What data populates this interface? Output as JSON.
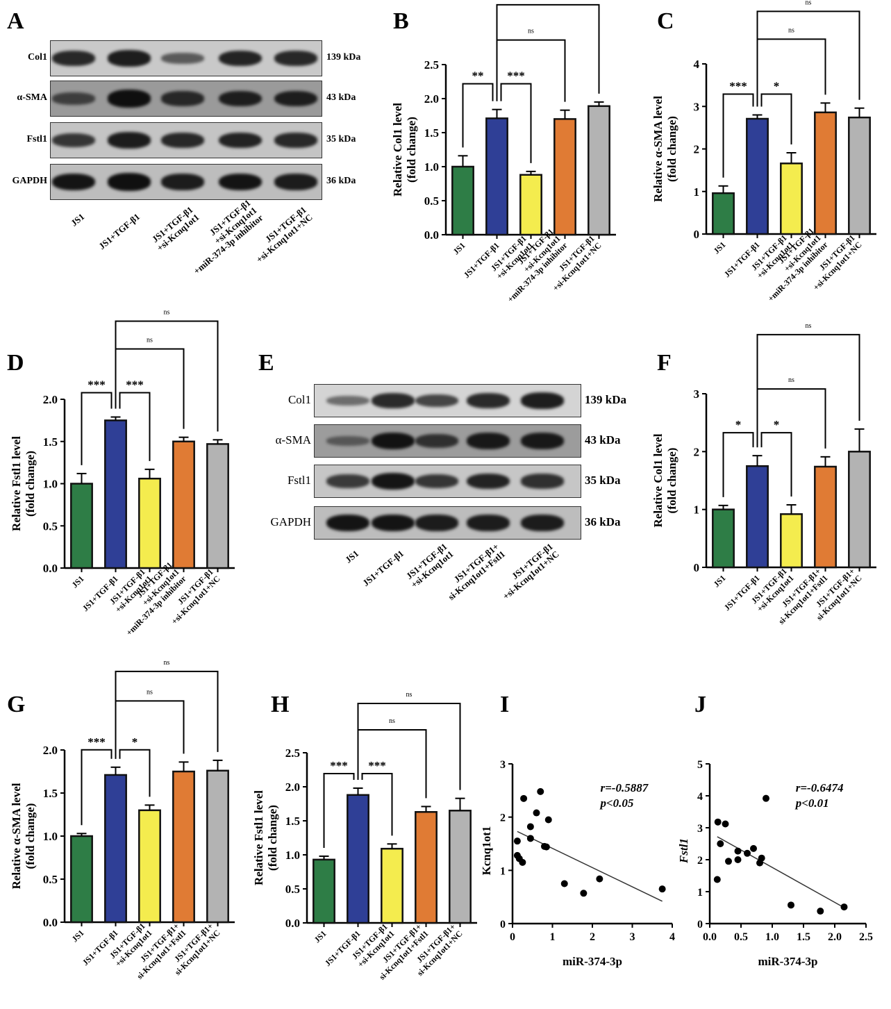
{
  "panels": {
    "A": "A",
    "B": "B",
    "C": "C",
    "D": "D",
    "E": "E",
    "F": "F",
    "G": "G",
    "H": "H",
    "I": "I",
    "J": "J"
  },
  "blots": [
    {
      "panel": "A",
      "rows": [
        {
          "name": "Col1",
          "kda": "139 kDa",
          "intensity": [
            0.75,
            0.85,
            0.35,
            0.8,
            0.75
          ],
          "bg": "#c9c9c9"
        },
        {
          "name": "α-SMA",
          "kda": "43 kDa",
          "intensity": [
            0.45,
            0.95,
            0.7,
            0.8,
            0.8
          ],
          "bg": "#9a9a9a"
        },
        {
          "name": "Fstl1",
          "kda": "35 kDa",
          "intensity": [
            0.65,
            0.85,
            0.75,
            0.8,
            0.75
          ],
          "bg": "#c4c4c4"
        },
        {
          "name": "GAPDH",
          "kda": "36 kDa",
          "intensity": [
            0.9,
            0.95,
            0.85,
            0.9,
            0.85
          ],
          "bg": "#bdbdbd"
        }
      ],
      "lanes": [
        "JS1",
        "JS1+TGF-β1",
        "JS1+TGF-β1\n+si-Kcnq1ot1",
        "JS1+TGF-β1\n+si-Kcnq1ot1\n+miR-374-3p inhibitor",
        "JS1+TGF-β1\n+si-Kcnq1ot1+NC"
      ]
    },
    {
      "panel": "E",
      "rows": [
        {
          "name": "Col1",
          "kda": "139 kDa",
          "intensity": [
            0.25,
            0.75,
            0.55,
            0.75,
            0.85
          ],
          "bg": "#d4d4d4"
        },
        {
          "name": "α-SMA",
          "kda": "43 kDa",
          "intensity": [
            0.2,
            0.9,
            0.6,
            0.85,
            0.85
          ],
          "bg": "#9c9c9c"
        },
        {
          "name": "Fstl1",
          "kda": "35 kDa",
          "intensity": [
            0.6,
            0.9,
            0.65,
            0.8,
            0.7
          ],
          "bg": "#c6c6c6"
        },
        {
          "name": "GAPDH",
          "kda": "36 kDa",
          "intensity": [
            0.9,
            0.9,
            0.85,
            0.85,
            0.85
          ],
          "bg": "#bdbdbd"
        }
      ],
      "lanes": [
        "JS1",
        "JS1+TGF-β1",
        "JS1+TGF-β1\n+si-Kcnq1ot1",
        "JS1+TGF-β1+\nsi-Kcnq1ot1+Fstl1",
        "JS1+TGF-β1\n+si-Kcnq1ot1+NC"
      ]
    }
  ],
  "chart_data": [
    {
      "panel": "B",
      "type": "bar",
      "ylabel": "Relative Col1 level\n(fold change)",
      "ylim": [
        0,
        2.5
      ],
      "yticks": [
        0.0,
        0.5,
        1.0,
        1.5,
        2.0,
        2.5
      ],
      "categories": [
        "JS1",
        "JS1+TGF-β1",
        "JS1+TGF-β1\n+si-Kcnq1ot1",
        "JS1+TGF-β1\n+si-Kcnq1ot1\n+miR-374-3p inhibitor",
        "JS1+TGF-β1\n+si-Kcnq1ot1+NC"
      ],
      "values": [
        1.0,
        1.71,
        0.88,
        1.7,
        1.89
      ],
      "errors": [
        0.16,
        0.13,
        0.05,
        0.13,
        0.06
      ],
      "colors": [
        "#2e7d46",
        "#2f3f96",
        "#f4ec4e",
        "#e07b34",
        "#b3b3b3"
      ],
      "brackets": [
        {
          "from": 0,
          "to": 1,
          "label": "**"
        },
        {
          "from": 1,
          "to": 2,
          "label": "***"
        },
        {
          "from": 1,
          "to": 3,
          "label": "ns"
        },
        {
          "from": 1,
          "to": 4,
          "label": "ns"
        }
      ]
    },
    {
      "panel": "C",
      "type": "bar",
      "ylabel": "Relative α-SMA level\n(fold change)",
      "ylim": [
        0,
        4
      ],
      "yticks": [
        0,
        1,
        2,
        3,
        4
      ],
      "categories": [
        "JS1",
        "JS1+TGF-β1",
        "JS1+TGF-β1\n+si-Kcnq1ot1",
        "JS1+TGF-β1\n+si-Kcnq1ot1\n+miR-374-3p inhibitor",
        "JS1+TGF-β1\n+si-Kcnq1ot1+NC"
      ],
      "values": [
        0.96,
        2.71,
        1.66,
        2.86,
        2.74
      ],
      "errors": [
        0.17,
        0.09,
        0.25,
        0.22,
        0.22
      ],
      "colors": [
        "#2e7d46",
        "#2f3f96",
        "#f4ec4e",
        "#e07b34",
        "#b3b3b3"
      ],
      "brackets": [
        {
          "from": 0,
          "to": 1,
          "label": "***"
        },
        {
          "from": 1,
          "to": 2,
          "label": "*"
        },
        {
          "from": 1,
          "to": 3,
          "label": "ns"
        },
        {
          "from": 1,
          "to": 4,
          "label": "ns"
        }
      ]
    },
    {
      "panel": "D",
      "type": "bar",
      "ylabel": "Relative Fstl1 level\n(fold change)",
      "ylim": [
        0,
        2.0
      ],
      "yticks": [
        0.0,
        0.5,
        1.0,
        1.5,
        2.0
      ],
      "categories": [
        "JS1",
        "JS1+TGF-β1",
        "JS1+TGF-β1\n+si-Kcnq1ot1",
        "JS1+TGF-β1\n+si-Kcnq1ot1\n+miR-374-3p inhibitor",
        "JS1+TGF-β1\n+si-Kcnq1ot1+NC"
      ],
      "values": [
        1.0,
        1.75,
        1.06,
        1.5,
        1.47
      ],
      "errors": [
        0.12,
        0.04,
        0.11,
        0.05,
        0.05
      ],
      "colors": [
        "#2e7d46",
        "#2f3f96",
        "#f4ec4e",
        "#e07b34",
        "#b3b3b3"
      ],
      "brackets": [
        {
          "from": 0,
          "to": 1,
          "label": "***"
        },
        {
          "from": 1,
          "to": 2,
          "label": "***"
        },
        {
          "from": 1,
          "to": 3,
          "label": "ns"
        },
        {
          "from": 1,
          "to": 4,
          "label": "ns"
        }
      ]
    },
    {
      "panel": "F",
      "type": "bar",
      "ylabel": "Relative Col1 level\n(fold change)",
      "ylim": [
        0,
        3
      ],
      "yticks": [
        0,
        1,
        2,
        3
      ],
      "categories": [
        "JS1",
        "JS1+TGF-β1",
        "JS1+TGF-β1\n+si-Kcnq1ot1",
        "JS1+TGF-β1+\nsi-Kcnq1ot1+Fstl1",
        "JS1+TGF-β1+\nsi-Kcnq1ot1+NC"
      ],
      "values": [
        1.0,
        1.75,
        0.92,
        1.74,
        2.0
      ],
      "errors": [
        0.07,
        0.18,
        0.16,
        0.17,
        0.39
      ],
      "colors": [
        "#2e7d46",
        "#2f3f96",
        "#f4ec4e",
        "#e07b34",
        "#b3b3b3"
      ],
      "brackets": [
        {
          "from": 0,
          "to": 1,
          "label": "*"
        },
        {
          "from": 1,
          "to": 2,
          "label": "*"
        },
        {
          "from": 1,
          "to": 3,
          "label": "ns"
        },
        {
          "from": 1,
          "to": 4,
          "label": "ns"
        }
      ]
    },
    {
      "panel": "G",
      "type": "bar",
      "ylabel": "Relative α-SMA level\n(fold change)",
      "ylim": [
        0,
        2.0
      ],
      "yticks": [
        0.0,
        0.5,
        1.0,
        1.5,
        2.0
      ],
      "categories": [
        "JS1",
        "JS1+TGF-β1",
        "JS1+TGF-β1\n+si-Kcnq1ot1",
        "JS1+TGF-β1+\nsi-Kcnq1ot1+Fstl1",
        "JS1+TGF-β1+\nsi-Kcnq1ot1+NC"
      ],
      "values": [
        1.0,
        1.71,
        1.3,
        1.75,
        1.76
      ],
      "errors": [
        0.03,
        0.09,
        0.06,
        0.11,
        0.12
      ],
      "colors": [
        "#2e7d46",
        "#2f3f96",
        "#f4ec4e",
        "#e07b34",
        "#b3b3b3"
      ],
      "brackets": [
        {
          "from": 0,
          "to": 1,
          "label": "***"
        },
        {
          "from": 1,
          "to": 2,
          "label": "*"
        },
        {
          "from": 1,
          "to": 3,
          "label": "ns"
        },
        {
          "from": 1,
          "to": 4,
          "label": "ns"
        }
      ]
    },
    {
      "panel": "H",
      "type": "bar",
      "ylabel": "Relative Fstl1 level\n(fold change)",
      "ylim": [
        0,
        2.5
      ],
      "yticks": [
        0.0,
        0.5,
        1.0,
        1.5,
        2.0,
        2.5
      ],
      "categories": [
        "JS1",
        "JS1+TGF-β1",
        "JS1+TGF-β1\n+si-Kcnq1ot1",
        "JS1+TGF-β1+\nsi-Kcnq1ot1+Fstl1",
        "JS1+TGF-β1+\nsi-Kcnq1ot1+NC"
      ],
      "values": [
        0.93,
        1.88,
        1.09,
        1.63,
        1.65
      ],
      "errors": [
        0.05,
        0.1,
        0.07,
        0.08,
        0.18
      ],
      "colors": [
        "#2e7d46",
        "#2f3f96",
        "#f4ec4e",
        "#e07b34",
        "#b3b3b3"
      ],
      "brackets": [
        {
          "from": 0,
          "to": 1,
          "label": "***"
        },
        {
          "from": 1,
          "to": 2,
          "label": "***"
        },
        {
          "from": 1,
          "to": 3,
          "label": "ns"
        },
        {
          "from": 1,
          "to": 4,
          "label": "ns"
        }
      ]
    },
    {
      "panel": "I",
      "type": "scatter",
      "xlabel": "miR-374-3p",
      "ylabel": "Kcnq1ot1",
      "xlim": [
        0,
        4
      ],
      "ylim": [
        0,
        3
      ],
      "xticks": [
        0,
        1,
        2,
        3,
        4
      ],
      "yticks": [
        0,
        1,
        2,
        3
      ],
      "annotation": [
        "r=-0.5887",
        "p<0.05"
      ],
      "points": [
        [
          0.12,
          1.55
        ],
        [
          0.12,
          1.28
        ],
        [
          0.17,
          1.22
        ],
        [
          0.25,
          1.15
        ],
        [
          0.28,
          2.35
        ],
        [
          0.45,
          1.82
        ],
        [
          0.45,
          1.6
        ],
        [
          0.6,
          2.08
        ],
        [
          0.7,
          2.48
        ],
        [
          0.8,
          1.45
        ],
        [
          0.85,
          1.44
        ],
        [
          0.9,
          1.95
        ],
        [
          1.3,
          0.75
        ],
        [
          1.78,
          0.57
        ],
        [
          2.18,
          0.84
        ],
        [
          3.75,
          0.65
        ]
      ],
      "fit": [
        [
          0.12,
          1.73
        ],
        [
          3.75,
          0.42
        ]
      ]
    },
    {
      "panel": "J",
      "type": "scatter",
      "xlabel": "miR-374-3p",
      "ylabel": "Fstl1",
      "xlim": [
        0,
        2.5
      ],
      "ylim": [
        0,
        5
      ],
      "xticks": [
        0.0,
        0.5,
        1.0,
        1.5,
        2.0,
        2.5
      ],
      "yticks": [
        0,
        1,
        2,
        3,
        4,
        5
      ],
      "annotation": [
        "r=-0.6474",
        "p<0.01"
      ],
      "points": [
        [
          0.12,
          1.38
        ],
        [
          0.13,
          3.18
        ],
        [
          0.17,
          2.5
        ],
        [
          0.25,
          3.12
        ],
        [
          0.3,
          1.95
        ],
        [
          0.45,
          2.27
        ],
        [
          0.45,
          2.0
        ],
        [
          0.6,
          2.2
        ],
        [
          0.7,
          2.35
        ],
        [
          0.8,
          1.9
        ],
        [
          0.83,
          2.05
        ],
        [
          0.9,
          3.92
        ],
        [
          1.3,
          0.58
        ],
        [
          1.77,
          0.39
        ],
        [
          2.15,
          0.52
        ]
      ],
      "fit": [
        [
          0.12,
          2.72
        ],
        [
          2.15,
          0.5
        ]
      ]
    }
  ]
}
